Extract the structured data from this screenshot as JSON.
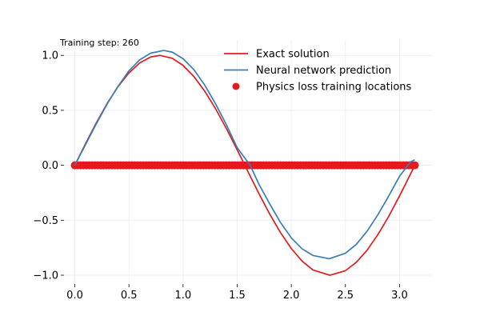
{
  "chart_data": {
    "type": "line",
    "title": "",
    "xlabel": "",
    "ylabel": "",
    "xlim": [
      -0.1,
      3.3
    ],
    "ylim": [
      -1.08,
      1.14
    ],
    "xticks": [
      0.0,
      0.5,
      1.0,
      1.5,
      2.0,
      2.5,
      3.0
    ],
    "xtick_labels": [
      "0.0",
      "0.5",
      "1.0",
      "1.5",
      "2.0",
      "2.5",
      "3.0"
    ],
    "yticks": [
      -1.0,
      -0.5,
      0.0,
      0.5,
      1.0
    ],
    "ytick_labels": [
      "−1.0",
      "−0.5",
      "0.0",
      "0.5",
      "1.0"
    ],
    "grid": true,
    "legend_position": "top-right",
    "annotation": "Training step: 260",
    "series": [
      {
        "name": "Exact solution",
        "kind": "line",
        "color": "#e41a1c",
        "x": [
          0.0,
          0.1,
          0.2,
          0.3,
          0.4,
          0.5,
          0.6,
          0.7,
          0.785,
          0.9,
          1.0,
          1.1,
          1.2,
          1.3,
          1.4,
          1.5,
          1.571,
          1.6,
          1.7,
          1.8,
          1.9,
          2.0,
          2.1,
          2.2,
          2.356,
          2.5,
          2.6,
          2.7,
          2.8,
          2.9,
          3.0,
          3.1,
          3.1416
        ],
        "y": [
          0.0,
          0.199,
          0.389,
          0.565,
          0.717,
          0.841,
          0.932,
          0.985,
          1.0,
          0.974,
          0.909,
          0.808,
          0.675,
          0.516,
          0.335,
          0.141,
          0.0,
          -0.058,
          -0.256,
          -0.443,
          -0.612,
          -0.757,
          -0.872,
          -0.952,
          -1.0,
          -0.959,
          -0.883,
          -0.773,
          -0.631,
          -0.465,
          -0.279,
          -0.083,
          0.0
        ]
      },
      {
        "name": "Neural network prediction",
        "kind": "line",
        "color": "#377eb8",
        "x": [
          0.0,
          0.1,
          0.2,
          0.3,
          0.4,
          0.5,
          0.6,
          0.7,
          0.82,
          0.9,
          1.0,
          1.1,
          1.2,
          1.3,
          1.4,
          1.5,
          1.62,
          1.7,
          1.8,
          1.9,
          2.0,
          2.1,
          2.2,
          2.35,
          2.5,
          2.6,
          2.7,
          2.8,
          2.9,
          3.0,
          3.1,
          3.14
        ],
        "y": [
          0.0,
          0.19,
          0.38,
          0.56,
          0.72,
          0.86,
          0.96,
          1.02,
          1.045,
          1.03,
          0.97,
          0.87,
          0.73,
          0.56,
          0.37,
          0.16,
          0.0,
          -0.17,
          -0.35,
          -0.52,
          -0.66,
          -0.76,
          -0.82,
          -0.85,
          -0.8,
          -0.72,
          -0.6,
          -0.45,
          -0.28,
          -0.1,
          0.03,
          0.05
        ]
      },
      {
        "name": "Physics loss training locations",
        "kind": "scatter",
        "color": "#e41a1c",
        "x_range": [
          0.0,
          3.1416
        ],
        "y_value": 0.0
      }
    ]
  }
}
